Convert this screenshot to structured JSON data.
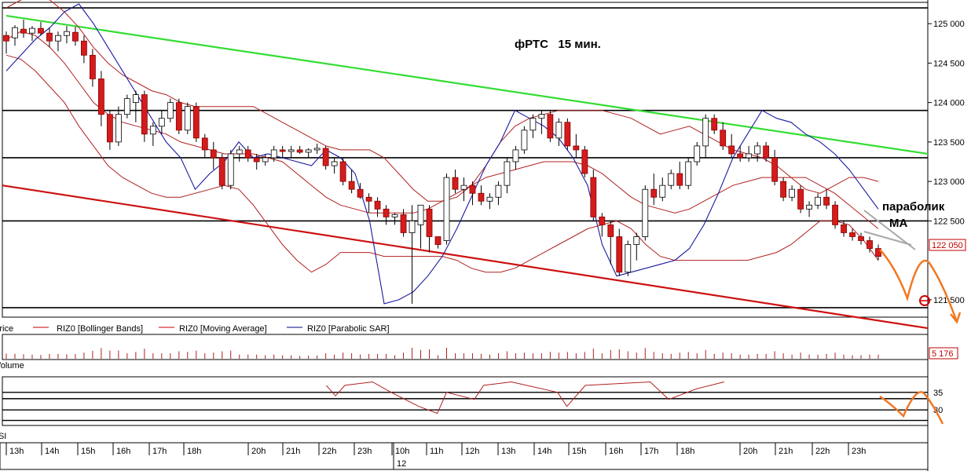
{
  "chart_data": {
    "type": "candlestick",
    "title": "фРТС   15 мин.",
    "annotations": {
      "parabolic": "параболик",
      "ma": "МА"
    },
    "current_price_label": "122 050",
    "volume_label": "5 176",
    "legend": {
      "price": "Price",
      "bollinger": "RIZ0 [Bollinger Bands]",
      "ma": "RIZ0 [Moving Average]",
      "sar": "RIZ0 [Parabolic SAR]",
      "volume": "Volume",
      "rsi": "RSI"
    },
    "price_axis": {
      "ylim": [
        121300,
        125250
      ],
      "ticks": [
        {
          "v": 125000,
          "label": "125 000"
        },
        {
          "v": 124500,
          "label": "124 500"
        },
        {
          "v": 124000,
          "label": "124 000"
        },
        {
          "v": 123500,
          "label": "123 500"
        },
        {
          "v": 123000,
          "label": "123 000"
        },
        {
          "v": 122500,
          "label": "122 500"
        },
        {
          "v": 121500,
          "label": "121 500"
        }
      ]
    },
    "rsi_axis": {
      "ticks": [
        {
          "v": 35,
          "label": "35"
        },
        {
          "v": 30,
          "label": "30"
        }
      ]
    },
    "time_labels": [
      "13h",
      "14h",
      "15h",
      "16h",
      "17h",
      "18h",
      "20h",
      "21h",
      "22h",
      "23h",
      "10h",
      "11h",
      "12h",
      "13h",
      "14h",
      "15h",
      "16h",
      "17h",
      "18h",
      "20h",
      "21h",
      "22h",
      "23h"
    ],
    "date_label": "12",
    "levels": [
      125200,
      123900,
      123300,
      122500,
      121400
    ],
    "green_trend": [
      [
        125100
      ],
      [
        123350
      ]
    ],
    "red_trend": [
      [
        122950
      ],
      [
        121140
      ]
    ],
    "candles": [
      [
        124850,
        124900,
        124620,
        124780
      ],
      [
        124820,
        124980,
        124720,
        124950
      ],
      [
        124930,
        125050,
        124820,
        124880
      ],
      [
        124880,
        124970,
        124780,
        124940
      ],
      [
        124940,
        125020,
        124850,
        124880
      ],
      [
        124880,
        124950,
        124700,
        124780
      ],
      [
        124780,
        124900,
        124650,
        124850
      ],
      [
        124850,
        124970,
        124750,
        124900
      ],
      [
        124890,
        124960,
        124720,
        124780
      ],
      [
        124780,
        124850,
        124500,
        124600
      ],
      [
        124600,
        124680,
        124200,
        124300
      ],
      [
        124300,
        124400,
        123700,
        123850
      ],
      [
        123850,
        123900,
        123400,
        123500
      ],
      [
        123500,
        123950,
        123450,
        123850
      ],
      [
        123850,
        124100,
        123800,
        124050
      ],
      [
        124000,
        124150,
        123750,
        124100
      ],
      [
        124100,
        124150,
        123500,
        123600
      ],
      [
        123600,
        123750,
        123450,
        123700
      ],
      [
        123700,
        123900,
        123600,
        123800
      ],
      [
        123800,
        124050,
        123750,
        124000
      ],
      [
        124000,
        124050,
        123600,
        123650
      ],
      [
        123650,
        124000,
        123600,
        123950
      ],
      [
        123950,
        124000,
        123500,
        123550
      ],
      [
        123550,
        123600,
        123300,
        123400
      ],
      [
        123400,
        123500,
        123150,
        123300
      ],
      [
        123300,
        123350,
        122900,
        122950
      ],
      [
        122950,
        123400,
        122900,
        123350
      ],
      [
        123350,
        123450,
        123250,
        123400
      ],
      [
        123400,
        123450,
        123250,
        123300
      ],
      [
        123300,
        123350,
        123150,
        123250
      ],
      [
        123250,
        123350,
        123200,
        123300
      ],
      [
        123300,
        123450,
        123250,
        123400
      ],
      [
        123400,
        123450,
        123300,
        123380
      ],
      [
        123380,
        123450,
        123300,
        123400
      ],
      [
        123400,
        123450,
        123350,
        123370
      ],
      [
        123370,
        123420,
        123300,
        123400
      ],
      [
        123400,
        123480,
        123350,
        123420
      ],
      [
        123420,
        123450,
        123150,
        123200
      ],
      [
        123200,
        123300,
        123100,
        123250
      ],
      [
        123250,
        123300,
        122950,
        123000
      ],
      [
        123000,
        123150,
        122850,
        122900
      ],
      [
        122900,
        122980,
        122780,
        122800
      ],
      [
        122800,
        122850,
        122600,
        122750
      ],
      [
        122750,
        122800,
        122550,
        122650
      ],
      [
        122650,
        122700,
        122450,
        122550
      ],
      [
        122550,
        122600,
        122450,
        122580
      ],
      [
        122580,
        122650,
        122300,
        122350
      ],
      [
        122350,
        122700,
        121450,
        122500
      ],
      [
        122450,
        122700,
        122150,
        122700
      ],
      [
        122650,
        122700,
        122100,
        122300
      ],
      [
        122300,
        122300,
        122150,
        122200
      ],
      [
        122250,
        123100,
        122200,
        123050
      ],
      [
        123050,
        123150,
        122850,
        122900
      ],
      [
        122900,
        123050,
        122750,
        122950
      ],
      [
        122950,
        123000,
        122700,
        122850
      ],
      [
        122850,
        122950,
        122700,
        122750
      ],
      [
        122750,
        122850,
        122650,
        122800
      ],
      [
        122800,
        123000,
        122700,
        122950
      ],
      [
        122950,
        123300,
        122850,
        123250
      ],
      [
        123250,
        123450,
        123150,
        123400
      ],
      [
        123400,
        123700,
        123350,
        123650
      ],
      [
        123650,
        123850,
        123550,
        123800
      ],
      [
        123800,
        123900,
        123600,
        123850
      ],
      [
        123850,
        123900,
        123500,
        123550
      ],
      [
        123550,
        123800,
        123450,
        123750
      ],
      [
        123750,
        123800,
        123400,
        123450
      ],
      [
        123450,
        123600,
        123300,
        123400
      ],
      [
        123400,
        123450,
        123050,
        123100
      ],
      [
        123050,
        123150,
        122500,
        122550
      ],
      [
        122550,
        122600,
        122300,
        122450
      ],
      [
        122450,
        122500,
        121950,
        122300
      ],
      [
        122300,
        122400,
        121800,
        121850
      ],
      [
        121850,
        122250,
        121800,
        122200
      ],
      [
        122200,
        122350,
        122000,
        122300
      ],
      [
        122300,
        122950,
        122250,
        122900
      ],
      [
        122900,
        123100,
        122700,
        122800
      ],
      [
        122800,
        123050,
        122750,
        122950
      ],
      [
        122950,
        123150,
        122900,
        123100
      ],
      [
        123100,
        123250,
        122900,
        122950
      ],
      [
        122950,
        123300,
        122900,
        123250
      ],
      [
        123250,
        123500,
        123200,
        123450
      ],
      [
        123450,
        123850,
        123300,
        123800
      ],
      [
        123800,
        123850,
        123600,
        123650
      ],
      [
        123650,
        123750,
        123400,
        123450
      ],
      [
        123450,
        123600,
        123300,
        123350
      ],
      [
        123350,
        123450,
        123250,
        123300
      ],
      [
        123300,
        123450,
        123250,
        123350
      ],
      [
        123350,
        123500,
        123250,
        123450
      ],
      [
        123450,
        123500,
        123250,
        123300
      ],
      [
        123300,
        123400,
        122950,
        123000
      ],
      [
        123000,
        123050,
        122750,
        122800
      ],
      [
        122800,
        122950,
        122750,
        122900
      ],
      [
        122900,
        122950,
        122600,
        122650
      ],
      [
        122650,
        122750,
        122550,
        122700
      ],
      [
        122700,
        122850,
        122650,
        122800
      ],
      [
        122800,
        122900,
        122650,
        122700
      ],
      [
        122700,
        122750,
        122400,
        122450
      ],
      [
        122450,
        122500,
        122300,
        122350
      ],
      [
        122350,
        122400,
        122250,
        122300
      ],
      [
        122300,
        122350,
        122200,
        122250
      ],
      [
        122250,
        122300,
        122100,
        122150
      ],
      [
        122150,
        122200,
        122000,
        122050
      ]
    ],
    "bollinger_upper": [
      125200,
      125300,
      125350,
      125300,
      125150,
      124950,
      124700,
      124500,
      124350,
      124250,
      124150,
      124100,
      124000,
      123950,
      123950,
      123950,
      123950,
      123950,
      123850,
      123750,
      123650,
      123550,
      123450,
      123400,
      123400,
      123400,
      123300,
      123100,
      122900,
      122750,
      122750,
      122800,
      122950,
      123200,
      123500,
      123700,
      123800,
      123850,
      123900,
      123900,
      123900,
      123900,
      123850,
      123800,
      123700,
      123600,
      123650,
      123700,
      123600,
      123500,
      123400,
      123350,
      123300,
      123200,
      123050,
      122900,
      122850,
      122950,
      123050,
      123050,
      123000
    ],
    "bollinger_lower": [
      124600,
      124550,
      124400,
      124200,
      124000,
      123700,
      123450,
      123200,
      123050,
      122950,
      122850,
      122800,
      122800,
      122850,
      122900,
      122950,
      122900,
      122700,
      122450,
      122200,
      122000,
      121850,
      121950,
      122100,
      122100,
      122100,
      122050,
      122050,
      122050,
      122050,
      122050,
      122000,
      121900,
      121850,
      121850,
      121900,
      122000,
      122100,
      122200,
      122300,
      122400,
      122450,
      122500,
      122400,
      122200,
      122050,
      122000,
      122000,
      122000,
      122000,
      122000,
      122000,
      122050,
      122100,
      122200,
      122350,
      122500,
      122500,
      122450,
      122250,
      122000
    ],
    "ma": [
      124800,
      124900,
      124850,
      124700,
      124500,
      124250,
      124000,
      123850,
      123750,
      123700,
      123650,
      123600,
      123500,
      123450,
      123400,
      123350,
      123350,
      123350,
      123300,
      123250,
      123100,
      122950,
      122800,
      122700,
      122650,
      122600,
      122600,
      122600,
      122600,
      122650,
      122750,
      122850,
      122950,
      123050,
      123100,
      123150,
      123200,
      123250,
      123250,
      123250,
      123200,
      123100,
      122950,
      122800,
      122700,
      122650,
      122600,
      122650,
      122750,
      122850,
      122950,
      123000,
      123050,
      123050,
      123050,
      123050,
      122950,
      122850,
      122700,
      122550,
      122400
    ],
    "sar": [
      124400,
      124600,
      124800,
      124950,
      125150,
      125250,
      125000,
      124700,
      124400,
      124100,
      123800,
      123500,
      123300,
      122900,
      123100,
      123250,
      123500,
      123300,
      123350,
      123300,
      123250,
      123200,
      123400,
      123300,
      123100,
      122500,
      121450,
      121500,
      121600,
      121800,
      122050,
      122400,
      122800,
      123200,
      123500,
      123900,
      123800,
      123700,
      123550,
      123300,
      122950,
      122200,
      121800,
      121850,
      121900,
      121950,
      122000,
      122150,
      122450,
      122850,
      123300,
      123600,
      123900,
      123800,
      123750,
      123600,
      123500,
      123350,
      123150,
      122900,
      122650
    ],
    "rsi": [
      [
        0.35,
        37
      ],
      [
        0.36,
        34
      ],
      [
        0.37,
        37
      ],
      [
        0.4,
        38
      ],
      [
        0.42,
        35
      ],
      [
        0.45,
        31
      ],
      [
        0.47,
        29
      ],
      [
        0.48,
        35
      ],
      [
        0.51,
        33
      ],
      [
        0.52,
        37
      ],
      [
        0.55,
        38
      ],
      [
        0.6,
        35
      ],
      [
        0.61,
        31
      ],
      [
        0.63,
        37
      ],
      [
        0.7,
        38
      ],
      [
        0.72,
        33
      ],
      [
        0.75,
        36
      ],
      [
        0.78,
        38
      ]
    ]
  }
}
